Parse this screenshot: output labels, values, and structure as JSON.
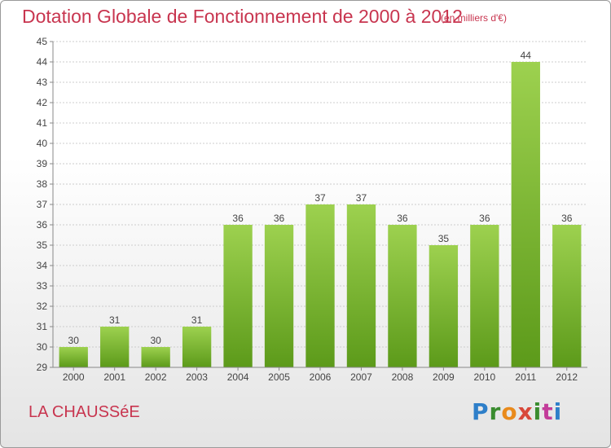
{
  "header": {
    "title": "Dotation Globale de Fonctionnement de 2000 à 2012",
    "unit": "(en milliers d'€)"
  },
  "footer": {
    "commune": "LA CHAUSSéE",
    "logo_text": "Proxiti"
  },
  "colors": {
    "text_accent": "#c8354f",
    "bar_light": "#9dd14f",
    "bar_dark": "#5c9a1a"
  },
  "chart_data": {
    "type": "bar",
    "title": "Dotation Globale de Fonctionnement de 2000 à 2012",
    "subtitle": "(en milliers d'€)",
    "xlabel": "",
    "ylabel": "",
    "categories": [
      "2000",
      "2001",
      "2002",
      "2003",
      "2004",
      "2005",
      "2006",
      "2007",
      "2008",
      "2009",
      "2010",
      "2011",
      "2012"
    ],
    "values": [
      30,
      31,
      30,
      31,
      36,
      36,
      37,
      37,
      36,
      35,
      36,
      44,
      36
    ],
    "data_labels": [
      "30",
      "31",
      "30",
      "31",
      "36",
      "36",
      "37",
      "37",
      "36",
      "35",
      "36",
      "44",
      "36"
    ],
    "ylim": [
      29,
      45
    ],
    "yticks": [
      29,
      30,
      31,
      32,
      33,
      34,
      35,
      36,
      37,
      38,
      39,
      40,
      41,
      42,
      43,
      44,
      45
    ],
    "grid": true
  }
}
